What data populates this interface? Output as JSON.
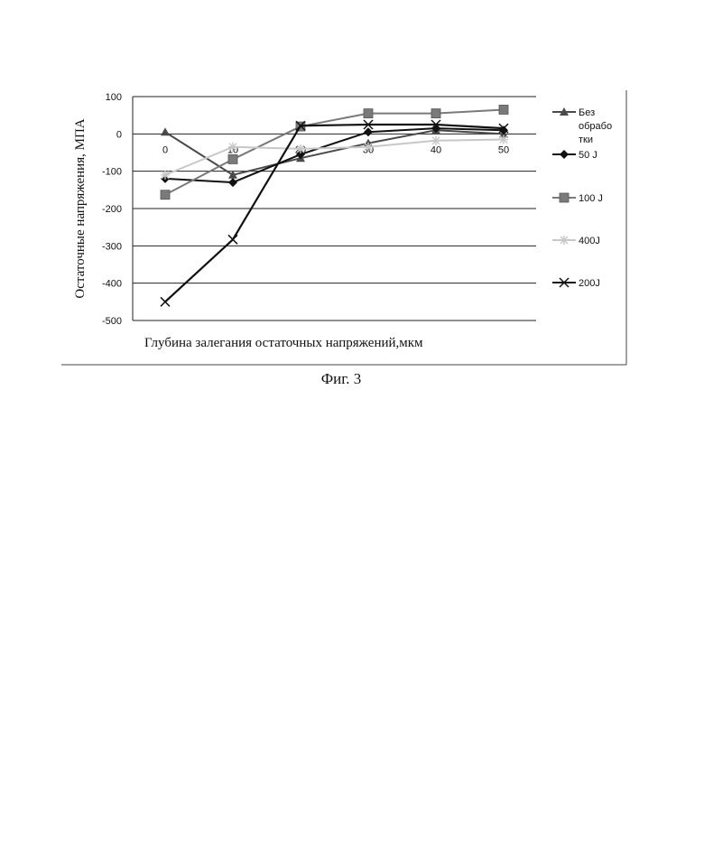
{
  "chart_data": {
    "type": "line",
    "x": [
      0,
      10,
      20,
      30,
      40,
      50
    ],
    "xlabel": "Глубина залегания остаточных напряжений,мкм",
    "ylabel": "Остаточные напряжения, МПА",
    "ylim": [
      -500,
      100
    ],
    "yticks": [
      100,
      0,
      -100,
      -200,
      -300,
      -400,
      -500
    ],
    "grid": true,
    "legend_position": "right",
    "series": [
      {
        "name": "Без обработки",
        "legend_lines": [
          "Без",
          "обрабо",
          "тки"
        ],
        "marker": "triangle",
        "color": "#4a4a4a",
        "values": [
          5,
          -110,
          -65,
          -25,
          10,
          0
        ]
      },
      {
        "name": "50 J",
        "legend_lines": [
          "50 J"
        ],
        "marker": "diamond",
        "color": "#111111",
        "values": [
          -120,
          -130,
          -55,
          5,
          15,
          10
        ]
      },
      {
        "name": "100 J",
        "legend_lines": [
          "100 J"
        ],
        "marker": "square",
        "color": "#7a7a7a",
        "values": [
          -163,
          -68,
          20,
          55,
          55,
          65
        ]
      },
      {
        "name": "400J",
        "legend_lines": [
          "400J"
        ],
        "marker": "star",
        "color": "#c8c8c8",
        "values": [
          -110,
          -35,
          -40,
          -35,
          -18,
          -15
        ]
      },
      {
        "name": "200J",
        "legend_lines": [
          "200J"
        ],
        "marker": "x",
        "color": "#111111",
        "values": [
          -450,
          -283,
          22,
          25,
          25,
          15
        ]
      }
    ]
  },
  "caption": "Фиг. 3"
}
